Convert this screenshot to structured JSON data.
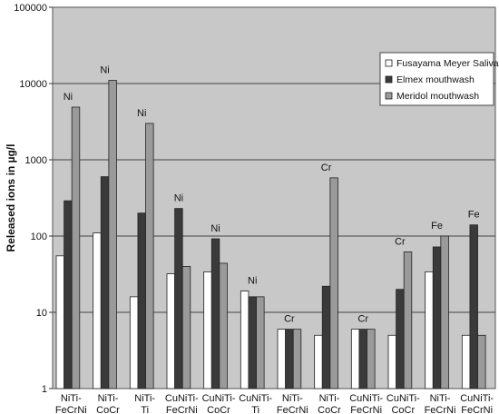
{
  "chart_data": {
    "type": "bar",
    "scale": "log",
    "ylabel": "Released ions in µg/l",
    "ylim": [
      1,
      100000
    ],
    "yticks": [
      "1",
      "10",
      "100",
      "1000",
      "10000",
      "100000"
    ],
    "grid": true,
    "legend_position": "right",
    "categories": [
      [
        "NiTi-",
        "FeCrNi"
      ],
      [
        "NiTi-",
        "CoCr"
      ],
      [
        "NiTi-",
        "Ti"
      ],
      [
        "CuNiTi-",
        "FeCrNi"
      ],
      [
        "CuNiTi-",
        "CoCr"
      ],
      [
        "CuNiTi-",
        "Ti"
      ],
      [
        "NiTi-",
        "FeCrNi"
      ],
      [
        "NiTi-",
        "CoCr"
      ],
      [
        "CuNiTi-",
        "FeCrNi"
      ],
      [
        "CuNiTi-",
        "CoCr"
      ],
      [
        "NiTi-",
        "FeCrNi"
      ],
      [
        "CuNiTi-",
        "FeCrNi"
      ]
    ],
    "annotations": [
      "Ni",
      "Ni",
      "Ni",
      "Ni",
      "Ni",
      "Ni",
      "Cr",
      "Cr",
      "Cr",
      "Cr",
      "Fe",
      "Fe"
    ],
    "series": [
      {
        "name": "Fusayama Meyer Saliva",
        "color": "#ffffff",
        "values": [
          55,
          110,
          16,
          32,
          34,
          19,
          6,
          5,
          6,
          5,
          34,
          5
        ]
      },
      {
        "name": "Elmex mouthwash",
        "color": "#3a3a3a",
        "values": [
          290,
          600,
          200,
          230,
          92,
          16,
          6,
          22,
          6,
          20,
          72,
          140
        ]
      },
      {
        "name": "Meridol mouthwash",
        "color": "#9a9a9a",
        "values": [
          4900,
          11000,
          3000,
          40,
          44,
          16,
          6,
          580,
          6,
          62,
          100,
          5
        ]
      }
    ],
    "plot_background": "#c8c8c8"
  }
}
